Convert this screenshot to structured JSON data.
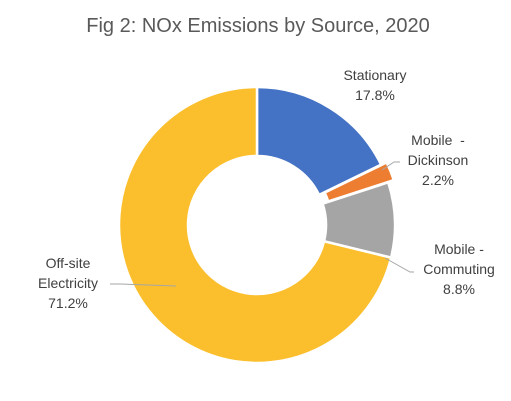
{
  "chart_data": {
    "type": "pie",
    "variant": "doughnut",
    "title": "Fig 2: NOx Emissions by Source, 2020",
    "series": [
      {
        "name": "Stationary",
        "label_lines": [
          "Stationary"
        ],
        "value": 17.8,
        "display": "17.8%",
        "color": "#4472c4"
      },
      {
        "name": "Mobile  - Dickinson",
        "label_lines": [
          "Mobile  -",
          "Dickinson"
        ],
        "value": 2.2,
        "display": "2.2%",
        "color": "#ed7d31"
      },
      {
        "name": "Mobile - Commuting",
        "label_lines": [
          "Mobile -",
          "Commuting"
        ],
        "value": 8.8,
        "display": "8.8%",
        "color": "#a5a5a5"
      },
      {
        "name": "Off-site Electricity",
        "label_lines": [
          "Off-site",
          "Electricity"
        ],
        "value": 71.2,
        "display": "71.2%",
        "color": "#fbbf2d"
      }
    ]
  }
}
